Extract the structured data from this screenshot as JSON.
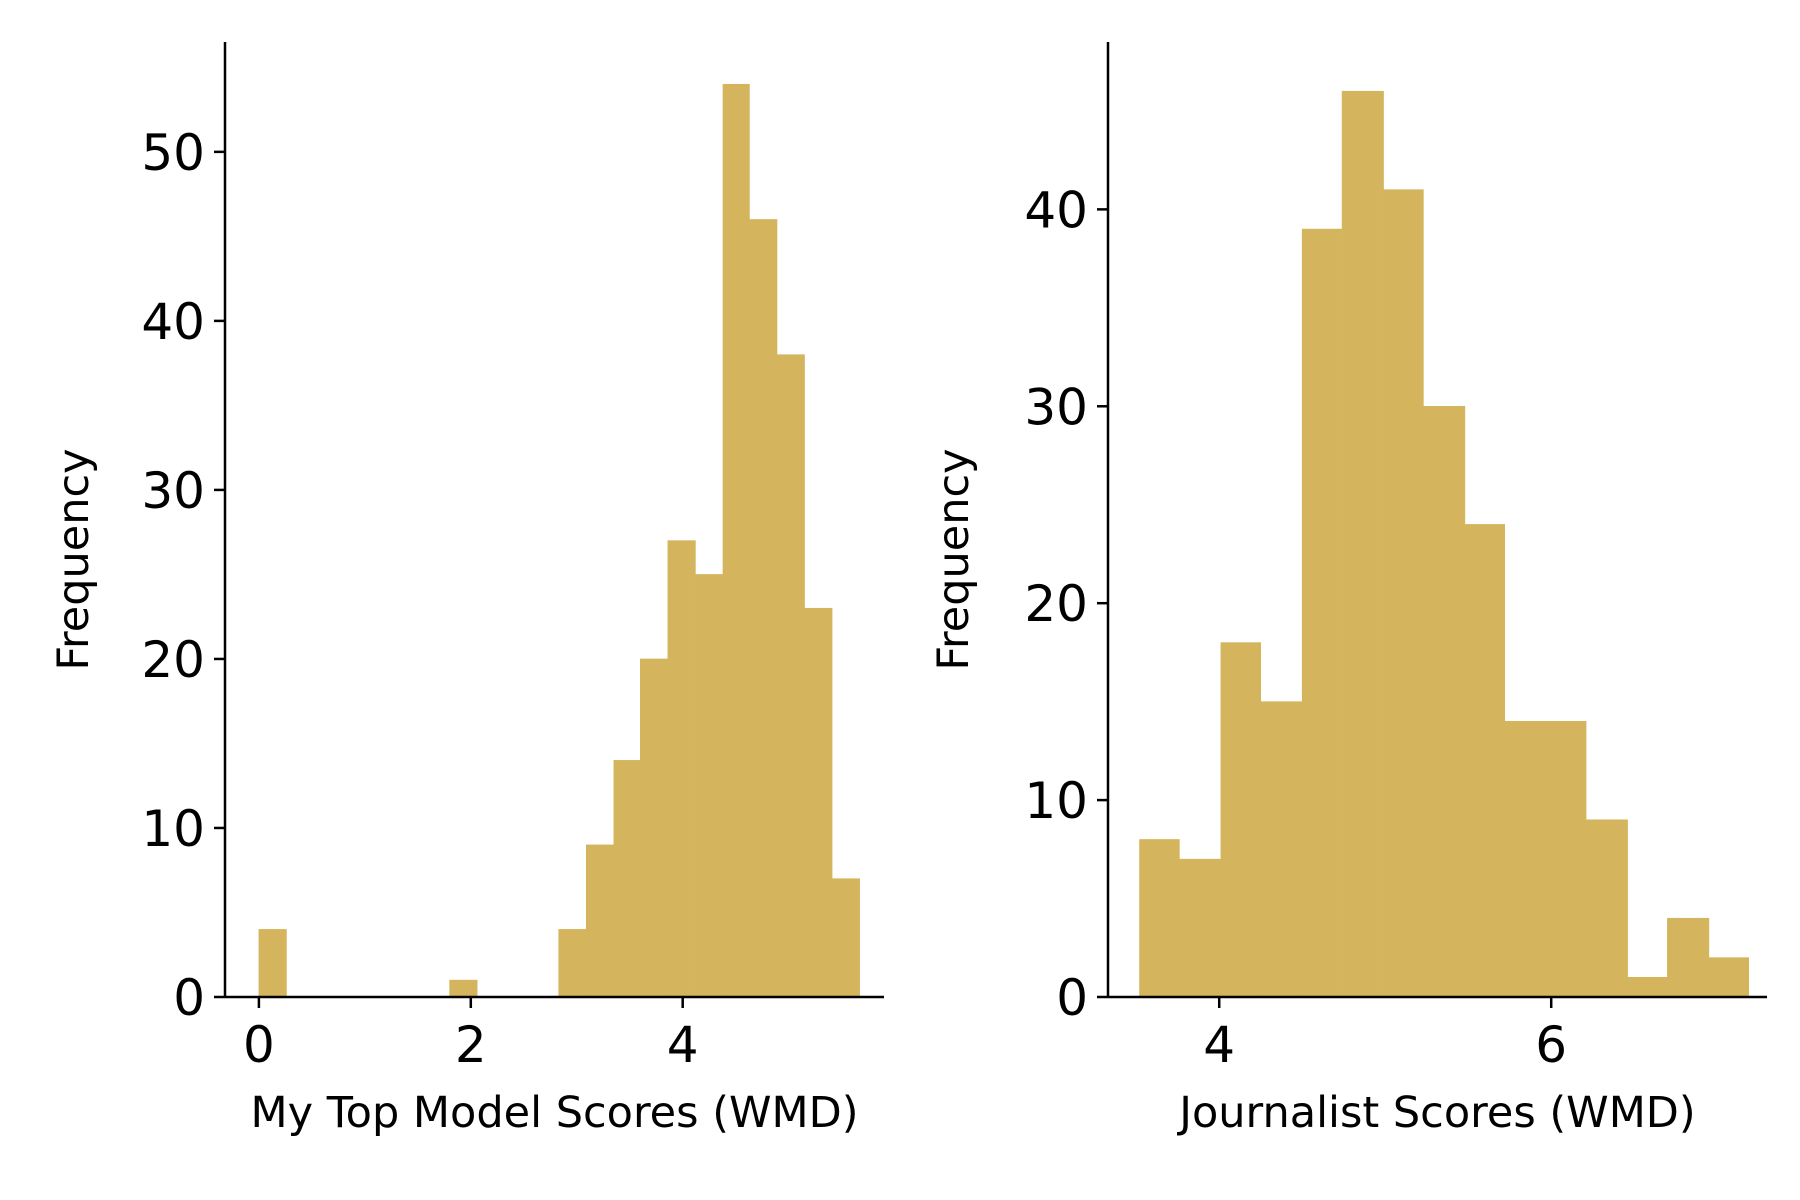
{
  "colors": {
    "bar_fill": "#D4B55E",
    "axis": "#000000",
    "background": "#ffffff"
  },
  "chart_data": [
    {
      "type": "bar",
      "histogram": true,
      "xlabel": "My Top Model Scores (WMD)",
      "ylabel": "Frequency",
      "xlim": [
        -0.32,
        5.9
      ],
      "ylim": [
        0,
        56.5
      ],
      "xticks": [
        0,
        2,
        4
      ],
      "yticks": [
        0,
        10,
        20,
        30,
        40,
        50
      ],
      "grid": false,
      "bins": [
        {
          "x0": 0.0,
          "x1": 0.26,
          "value": 4
        },
        {
          "x0": 1.8,
          "x1": 2.06,
          "value": 1
        },
        {
          "x0": 2.83,
          "x1": 3.09,
          "value": 4
        },
        {
          "x0": 3.09,
          "x1": 3.35,
          "value": 9
        },
        {
          "x0": 3.35,
          "x1": 3.6,
          "value": 14
        },
        {
          "x0": 3.6,
          "x1": 3.86,
          "value": 20
        },
        {
          "x0": 3.86,
          "x1": 4.12,
          "value": 27
        },
        {
          "x0": 4.12,
          "x1": 4.38,
          "value": 25
        },
        {
          "x0": 4.38,
          "x1": 4.63,
          "value": 54
        },
        {
          "x0": 4.63,
          "x1": 4.89,
          "value": 46
        },
        {
          "x0": 4.89,
          "x1": 5.15,
          "value": 38
        },
        {
          "x0": 5.15,
          "x1": 5.41,
          "value": 23
        },
        {
          "x0": 5.41,
          "x1": 5.67,
          "value": 7
        }
      ]
    },
    {
      "type": "bar",
      "histogram": true,
      "xlabel": "Journalist Scores (WMD)",
      "ylabel": "Frequency",
      "xlim": [
        3.33,
        7.3
      ],
      "ylim": [
        0,
        48.5
      ],
      "xticks": [
        4,
        6
      ],
      "yticks": [
        0,
        10,
        20,
        30,
        40
      ],
      "grid": false,
      "bins": [
        {
          "x0": 3.52,
          "x1": 3.76,
          "value": 8
        },
        {
          "x0": 3.76,
          "x1": 4.01,
          "value": 7
        },
        {
          "x0": 4.01,
          "x1": 4.25,
          "value": 18
        },
        {
          "x0": 4.25,
          "x1": 4.5,
          "value": 15
        },
        {
          "x0": 4.5,
          "x1": 4.74,
          "value": 39
        },
        {
          "x0": 4.74,
          "x1": 4.99,
          "value": 46
        },
        {
          "x0": 4.99,
          "x1": 5.23,
          "value": 41
        },
        {
          "x0": 5.23,
          "x1": 5.48,
          "value": 30
        },
        {
          "x0": 5.48,
          "x1": 5.72,
          "value": 24
        },
        {
          "x0": 5.72,
          "x1": 5.97,
          "value": 14
        },
        {
          "x0": 5.97,
          "x1": 6.21,
          "value": 14
        },
        {
          "x0": 6.21,
          "x1": 6.46,
          "value": 9
        },
        {
          "x0": 6.46,
          "x1": 6.7,
          "value": 1
        },
        {
          "x0": 6.7,
          "x1": 6.95,
          "value": 4
        },
        {
          "x0": 6.95,
          "x1": 7.19,
          "value": 2
        }
      ]
    }
  ]
}
